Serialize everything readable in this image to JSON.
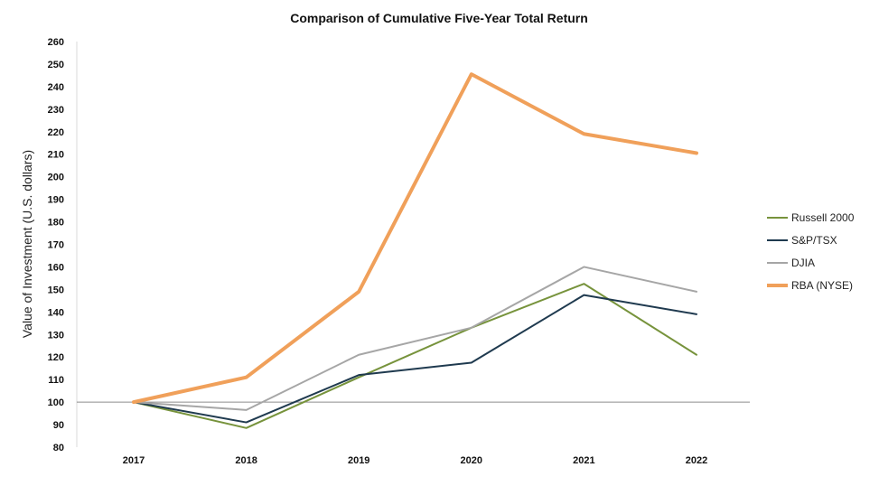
{
  "chart_data": {
    "type": "line",
    "title": "Comparison of Cumulative Five-Year Total Return",
    "ylabel": "Value of Investment (U.S. dollars)",
    "xlabel": "",
    "categories": [
      "2017",
      "2018",
      "2019",
      "2020",
      "2021",
      "2022"
    ],
    "ylim": [
      80,
      260
    ],
    "yticks": [
      80,
      90,
      100,
      110,
      120,
      130,
      140,
      150,
      160,
      170,
      180,
      190,
      200,
      210,
      220,
      230,
      240,
      250,
      260
    ],
    "reference_line": 100,
    "grid": false,
    "legend_position": "right",
    "series": [
      {
        "name": "Russell 2000",
        "color": "#77933c",
        "values": [
          100,
          88.5,
          111,
          133,
          152.5,
          121
        ]
      },
      {
        "name": "S&P/TSX",
        "color": "#1f3a4f",
        "values": [
          100,
          91,
          112,
          117.5,
          147.5,
          139
        ]
      },
      {
        "name": "DJIA",
        "color": "#a6a6a6",
        "values": [
          100,
          96.5,
          121,
          133,
          160,
          149
        ]
      },
      {
        "name": "RBA (NYSE)",
        "color": "#f0a05a",
        "values": [
          100,
          111,
          149,
          245.5,
          219,
          210.5
        ]
      }
    ]
  }
}
